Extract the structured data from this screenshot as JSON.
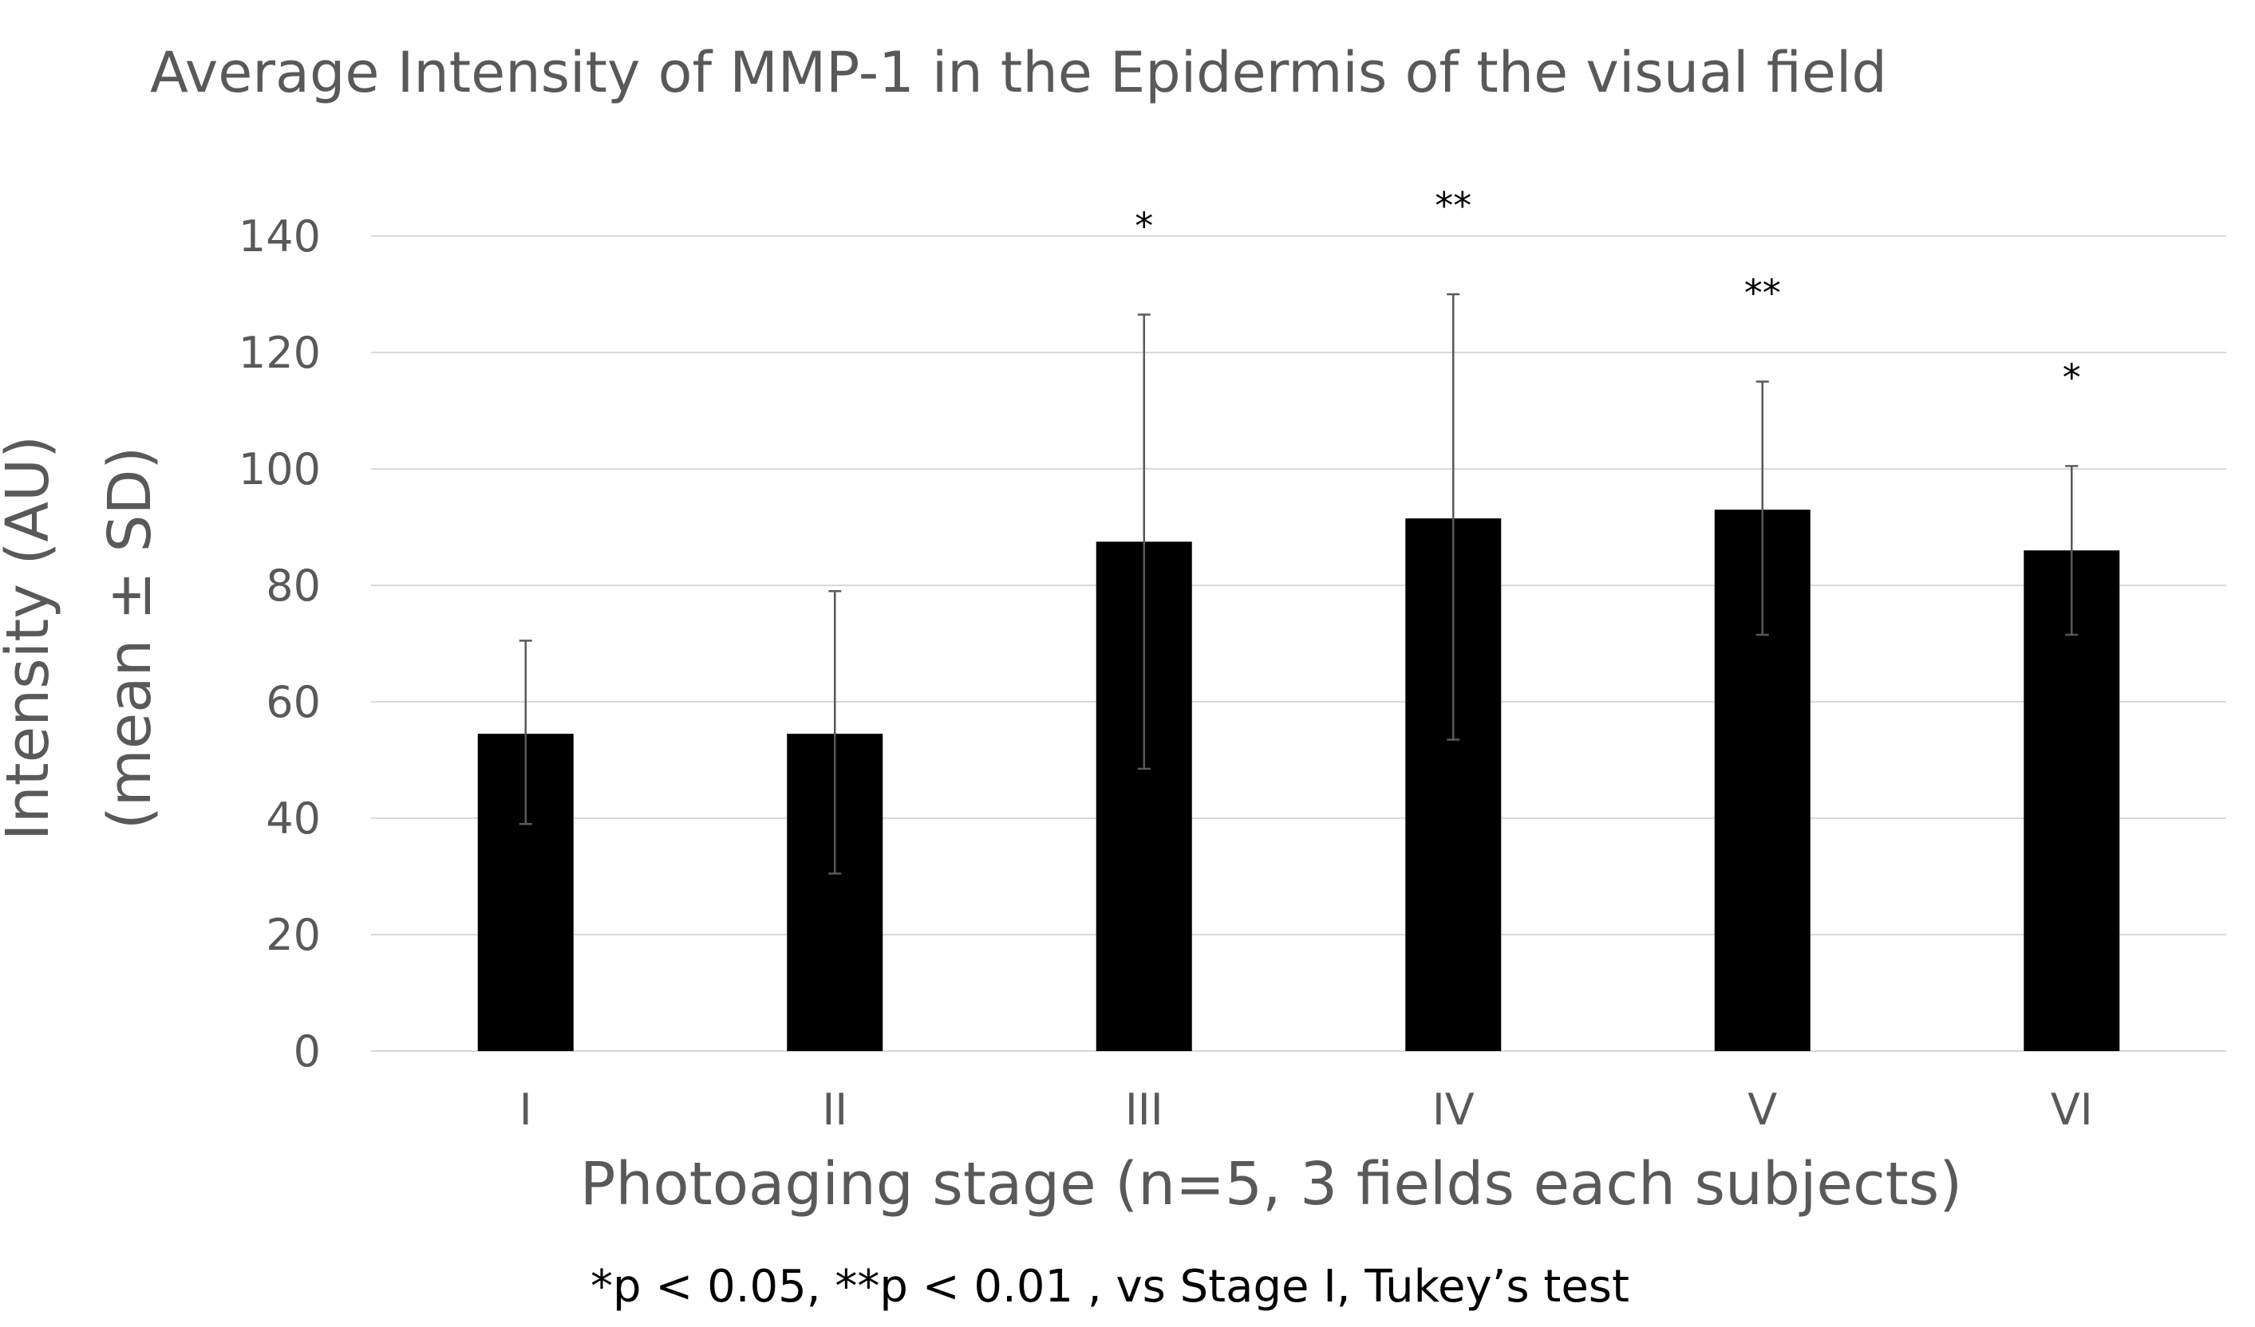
{
  "chart_data": {
    "type": "bar",
    "title": "Average Intensity of MMP-1 in the Epidermis of the visual field",
    "xlabel": "Photoaging stage (n=5, 3 fields each subjects)",
    "ylabel_line1": "Intensity (AU)",
    "ylabel_line2": "(mean ± SD)",
    "categories": [
      "I",
      "II",
      "III",
      "IV",
      "V",
      "VI"
    ],
    "values": [
      54.5,
      54.5,
      87.5,
      91.5,
      93,
      86
    ],
    "error_upper": [
      70.5,
      79,
      126.5,
      130,
      115,
      100.5
    ],
    "error_lower": [
      39,
      30.5,
      48.5,
      53.5,
      71.5,
      71.5
    ],
    "significance": [
      "",
      "",
      "*",
      "**",
      "**",
      "*"
    ],
    "ylim": [
      0,
      140
    ],
    "yticks": [
      "0",
      "20",
      "40",
      "60",
      "80",
      "100",
      "120",
      "140"
    ],
    "grid": true,
    "bar_color": "#000000",
    "footnote": "*p < 0.05, **p < 0.01 , vs Stage I, Tukey’s test"
  }
}
